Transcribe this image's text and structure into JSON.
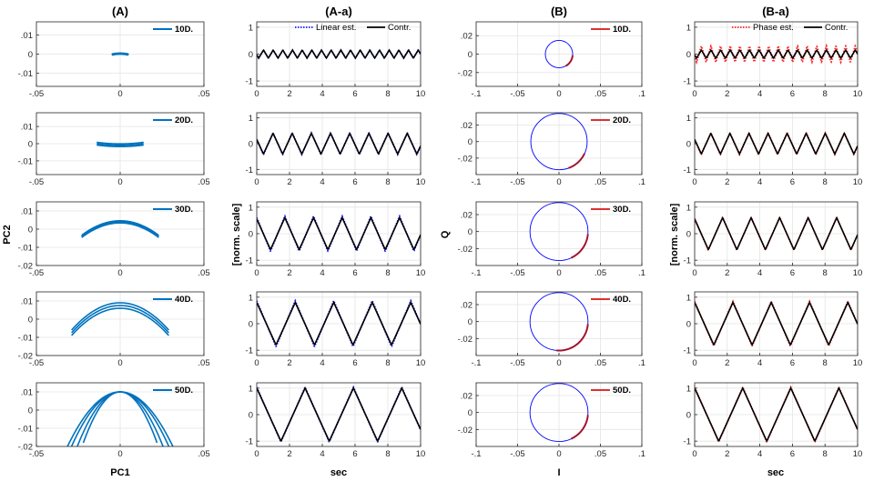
{
  "column_titles": [
    "(A)",
    "(A-a)",
    "(B)",
    "(B-a)"
  ],
  "ylabels": {
    "A": "PC2",
    "Aa": "[norm. scale]",
    "B": "Q",
    "Ba": "[norm. scale]"
  },
  "xlabels": {
    "A": "PC1",
    "Aa": "sec",
    "B": "I",
    "Ba": "sec"
  },
  "legends": {
    "Aa": [
      "Linear est.",
      "Contr."
    ],
    "Ba": [
      "Phase est.",
      "Contr."
    ]
  },
  "colors": {
    "pca": "#0072BD",
    "circle": "#0000FF",
    "arc": "#A2142F",
    "legend_red": "#E03030",
    "linear_est": "#1a1aff",
    "phase_est": "#ff2020",
    "contr": "#000000"
  },
  "chart_data": [
    {
      "type": "scatter",
      "column": "A",
      "title": "(A)",
      "xlabel": "PC1",
      "ylabel": "PC2",
      "xlim": [
        -0.05,
        0.05
      ],
      "xticks": [
        -0.05,
        0,
        0.05
      ],
      "grid": true,
      "rows": [
        {
          "label": "10D.",
          "ylim": [
            -0.017,
            0.017
          ],
          "yticks": [
            -0.01,
            0,
            0.01
          ],
          "arcs": [
            {
              "half_width": 0.005,
              "curvature": 0.0005,
              "spread": 0.0002
            }
          ]
        },
        {
          "label": "20D.",
          "ylim": [
            -0.018,
            0.018
          ],
          "yticks": [
            -0.01,
            0,
            0.01
          ],
          "arcs": [
            {
              "half_width": 0.014,
              "curvature": -0.002,
              "spread": 0.0008
            }
          ]
        },
        {
          "label": "30D.",
          "ylim": [
            -0.02,
            0.015
          ],
          "yticks": [
            -0.02,
            -0.01,
            0,
            0.01
          ],
          "arcs": [
            {
              "half_width": 0.023,
              "curvature": 0.008,
              "spread": 0.0006
            }
          ]
        },
        {
          "label": "40D.",
          "ylim": [
            -0.02,
            0.015
          ],
          "yticks": [
            -0.02,
            -0.01,
            0,
            0.01
          ],
          "arcs": [
            {
              "half_width": 0.029,
              "curvature": 0.015,
              "spread": 0.0015
            }
          ]
        },
        {
          "label": "50D.",
          "ylim": [
            -0.02,
            0.015
          ],
          "yticks": [
            -0.02,
            -0.01,
            0,
            0.01
          ],
          "arcs": [
            {
              "half_width": 0.033,
              "curvature": 0.023
            },
            {
              "half_width": 0.03,
              "curvature": 0.022
            },
            {
              "half_width": 0.026,
              "curvature": 0.021
            },
            {
              "half_width": 0.022,
              "curvature": 0.018
            }
          ]
        }
      ]
    },
    {
      "type": "line",
      "column": "Aa",
      "title": "(A-a)",
      "xlabel": "sec",
      "ylabel": "[norm. scale]",
      "xlim": [
        0,
        10
      ],
      "xticks": [
        0,
        2,
        4,
        6,
        8,
        10
      ],
      "ylim": [
        -1.2,
        1.2
      ],
      "yticks": [
        -1,
        0,
        1
      ],
      "grid": true,
      "series": [
        {
          "name": "Linear est.",
          "style": "dotted"
        },
        {
          "name": "Contr.",
          "style": "solid"
        }
      ],
      "rows": [
        {
          "amplitude": 0.15,
          "period": 0.59,
          "phase": 0.3,
          "est_gain": 1.0
        },
        {
          "amplitude": 0.4,
          "period": 1.17,
          "phase": 0.15,
          "est_gain": 1.05
        },
        {
          "amplitude": 0.6,
          "period": 1.75,
          "phase": 0.02,
          "est_gain": 1.1
        },
        {
          "amplitude": 0.8,
          "period": 2.35,
          "phase": 0.0,
          "est_gain": 1.08
        },
        {
          "amplitude": 1.0,
          "period": 2.95,
          "phase": 0.0,
          "est_gain": 1.03
        }
      ]
    },
    {
      "type": "line",
      "column": "B",
      "title": "(B)",
      "xlabel": "I",
      "ylabel": "Q",
      "xlim": [
        -0.1,
        0.1
      ],
      "xticks": [
        -0.1,
        -0.05,
        0,
        0.05,
        0.1
      ],
      "grid": true,
      "rows": [
        {
          "label": "10D.",
          "ylim": [
            -0.035,
            0.035
          ],
          "yticks": [
            -0.02,
            0,
            0.02
          ],
          "radius": 0.0165,
          "arc_deg": [
            -60,
            -5
          ]
        },
        {
          "label": "20D.",
          "ylim": [
            -0.04,
            0.035
          ],
          "yticks": [
            -0.02,
            0,
            0.02
          ],
          "radius": 0.034,
          "arc_deg": [
            -70,
            -25
          ]
        },
        {
          "label": "30D.",
          "ylim": [
            -0.04,
            0.035
          ],
          "yticks": [
            -0.02,
            0,
            0.02
          ],
          "radius": 0.035,
          "arc_deg": [
            -65,
            -5
          ]
        },
        {
          "label": "40D.",
          "ylim": [
            -0.04,
            0.035
          ],
          "yticks": [
            -0.02,
            0,
            0.02
          ],
          "radius": 0.035,
          "arc_deg": [
            -95,
            -5
          ]
        },
        {
          "label": "50D.",
          "ylim": [
            -0.04,
            0.035
          ],
          "yticks": [
            -0.02,
            0,
            0.02
          ],
          "radius": 0.035,
          "arc_deg": [
            -65,
            -5
          ]
        }
      ]
    },
    {
      "type": "line",
      "column": "Ba",
      "title": "(B-a)",
      "xlabel": "sec",
      "ylabel": "[norm. scale]",
      "xlim": [
        0,
        10
      ],
      "xticks": [
        0,
        2,
        4,
        6,
        8,
        10
      ],
      "ylim": [
        -1.2,
        1.2
      ],
      "yticks": [
        -1,
        0,
        1
      ],
      "grid": true,
      "series": [
        {
          "name": "Phase est.",
          "style": "dotted"
        },
        {
          "name": "Contr.",
          "style": "solid"
        }
      ],
      "rows": [
        {
          "amplitude": 0.15,
          "period": 0.59,
          "phase": 0.3,
          "est_gain": 2.0
        },
        {
          "amplitude": 0.4,
          "period": 1.17,
          "phase": 0.15,
          "est_gain": 1.05
        },
        {
          "amplitude": 0.6,
          "period": 1.75,
          "phase": 0.02,
          "est_gain": 1.03
        },
        {
          "amplitude": 0.8,
          "period": 2.35,
          "phase": 0.0,
          "est_gain": 1.05
        },
        {
          "amplitude": 1.0,
          "period": 2.95,
          "phase": 0.0,
          "est_gain": 1.03
        }
      ]
    }
  ]
}
